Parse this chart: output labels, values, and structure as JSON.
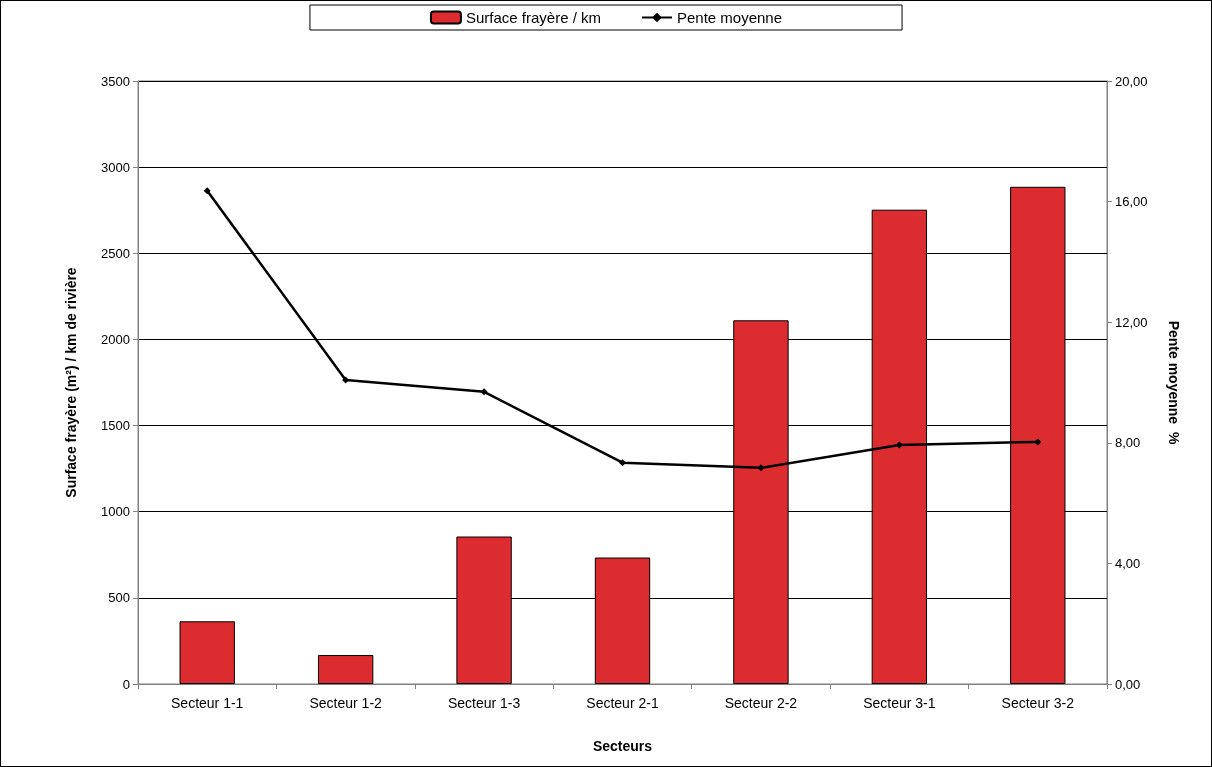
{
  "chart_data": {
    "type": "bar",
    "xlabel": "Secteurs",
    "ylabel": "Surface frayère (m²) / km de rivière",
    "y2label": "Pente moyenne  %",
    "categories": [
      "Secteur 1-1",
      "Secteur 1-2",
      "Secteur 1-3",
      "Secteur 2-1",
      "Secteur 2-2",
      "Secteur 3-1",
      "Secteur 3-2"
    ],
    "series": [
      {
        "name": "Surface frayère / km",
        "color": "#dd2c30",
        "values": [
          364,
          168,
          856,
          734,
          2111,
          2753,
          2886
        ]
      },
      {
        "name": "Pente moyenne",
        "type": "line",
        "axis": "y2",
        "color": "#000000",
        "marker": "diamond",
        "values": [
          16.36,
          10.08,
          9.69,
          7.34,
          7.17,
          7.93,
          8.03
        ]
      }
    ],
    "ylim": [
      0,
      3500
    ],
    "yticks": [
      0,
      500,
      1000,
      1500,
      2000,
      2500,
      3000,
      3500
    ],
    "y2lim": [
      0,
      20
    ],
    "y2ticks": [
      {
        "value": 0,
        "label": "0,00"
      },
      {
        "value": 4,
        "label": "4,00"
      },
      {
        "value": 8,
        "label": "8,00"
      },
      {
        "value": 12,
        "label": "12,00"
      },
      {
        "value": 16,
        "label": "16,00"
      },
      {
        "value": 20,
        "label": "20,00"
      }
    ],
    "grid": "y",
    "legend": "top"
  }
}
